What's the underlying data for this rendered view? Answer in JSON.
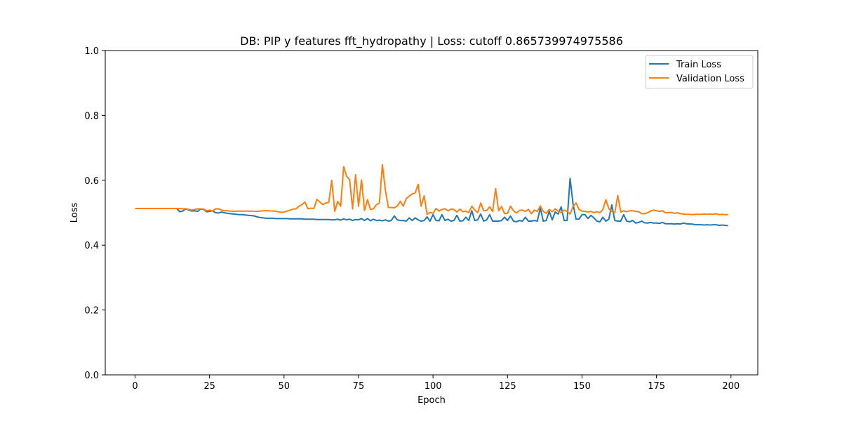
{
  "chart_data": {
    "type": "line",
    "title": "DB: PIP y features fft_hydropathy | Loss: cutoff 0.865739974975586",
    "xlabel": "Epoch",
    "ylabel": "Loss",
    "xlim": [
      -10,
      209
    ],
    "ylim": [
      0.0,
      1.0
    ],
    "x_ticks": [
      0,
      25,
      50,
      75,
      100,
      125,
      150,
      175,
      200
    ],
    "y_ticks": [
      0.0,
      0.2,
      0.4,
      0.6,
      0.8,
      1.0
    ],
    "y_tick_labels": [
      "0.0",
      "0.2",
      "0.4",
      "0.6",
      "0.8",
      "1.0"
    ],
    "grid": false,
    "legend_position": "upper-right",
    "series": [
      {
        "name": "Train Loss",
        "color": "#1f77b4",
        "values": [
          0.513,
          0.513,
          0.513,
          0.513,
          0.513,
          0.513,
          0.513,
          0.513,
          0.513,
          0.513,
          0.513,
          0.513,
          0.513,
          0.513,
          0.513,
          0.503,
          0.505,
          0.512,
          0.508,
          0.505,
          0.506,
          0.504,
          0.512,
          0.51,
          0.503,
          0.504,
          0.506,
          0.5,
          0.499,
          0.502,
          0.5,
          0.498,
          0.497,
          0.496,
          0.495,
          0.494,
          0.494,
          0.493,
          0.492,
          0.491,
          0.49,
          0.487,
          0.485,
          0.484,
          0.483,
          0.483,
          0.483,
          0.482,
          0.482,
          0.482,
          0.482,
          0.482,
          0.481,
          0.481,
          0.481,
          0.481,
          0.481,
          0.48,
          0.48,
          0.48,
          0.48,
          0.479,
          0.479,
          0.479,
          0.479,
          0.479,
          0.478,
          0.478,
          0.48,
          0.477,
          0.481,
          0.478,
          0.48,
          0.476,
          0.479,
          0.478,
          0.482,
          0.476,
          0.482,
          0.475,
          0.48,
          0.476,
          0.477,
          0.475,
          0.478,
          0.474,
          0.476,
          0.49,
          0.478,
          0.476,
          0.476,
          0.474,
          0.484,
          0.476,
          0.484,
          0.478,
          0.474,
          0.476,
          0.487,
          0.474,
          0.494,
          0.476,
          0.475,
          0.494,
          0.476,
          0.48,
          0.474,
          0.476,
          0.492,
          0.474,
          0.475,
          0.486,
          0.476,
          0.506,
          0.476,
          0.478,
          0.496,
          0.474,
          0.478,
          0.494,
          0.474,
          0.474,
          0.474,
          0.476,
          0.486,
          0.476,
          0.49,
          0.474,
          0.472,
          0.476,
          0.474,
          0.486,
          0.474,
          0.474,
          0.476,
          0.474,
          0.514,
          0.474,
          0.476,
          0.504,
          0.478,
          0.502,
          0.496,
          0.518,
          0.476,
          0.476,
          0.606,
          0.526,
          0.48,
          0.48,
          0.494,
          0.494,
          0.482,
          0.492,
          0.484,
          0.474,
          0.472,
          0.486,
          0.474,
          0.48,
          0.524,
          0.476,
          0.474,
          0.474,
          0.494,
          0.474,
          0.472,
          0.476,
          0.468,
          0.47,
          0.474,
          0.469,
          0.468,
          0.47,
          0.468,
          0.468,
          0.467,
          0.47,
          0.466,
          0.466,
          0.466,
          0.465,
          0.466,
          0.465,
          0.468,
          0.466,
          0.465,
          0.465,
          0.463,
          0.463,
          0.463,
          0.462,
          0.463,
          0.462,
          0.463,
          0.463,
          0.461,
          0.462,
          0.461,
          0.46
        ]
      },
      {
        "name": "Validation Loss",
        "color": "#ff7f0e",
        "values": [
          0.513,
          0.513,
          0.513,
          0.513,
          0.513,
          0.513,
          0.513,
          0.513,
          0.513,
          0.513,
          0.513,
          0.513,
          0.513,
          0.513,
          0.513,
          0.513,
          0.512,
          0.512,
          0.51,
          0.508,
          0.51,
          0.512,
          0.512,
          0.511,
          0.506,
          0.508,
          0.505,
          0.512,
          0.512,
          0.508,
          0.506,
          0.506,
          0.505,
          0.504,
          0.505,
          0.505,
          0.505,
          0.505,
          0.505,
          0.505,
          0.504,
          0.504,
          0.505,
          0.506,
          0.506,
          0.506,
          0.505,
          0.505,
          0.503,
          0.501,
          0.502,
          0.505,
          0.508,
          0.511,
          0.512,
          0.52,
          0.525,
          0.533,
          0.512,
          0.514,
          0.513,
          0.541,
          0.533,
          0.525,
          0.53,
          0.532,
          0.6,
          0.504,
          0.535,
          0.52,
          0.642,
          0.612,
          0.602,
          0.512,
          0.617,
          0.52,
          0.601,
          0.507,
          0.54,
          0.51,
          0.512,
          0.525,
          0.53,
          0.648,
          0.57,
          0.516,
          0.516,
          0.515,
          0.521,
          0.535,
          0.52,
          0.544,
          0.551,
          0.558,
          0.561,
          0.587,
          0.52,
          0.552,
          0.495,
          0.501,
          0.498,
          0.513,
          0.505,
          0.51,
          0.512,
          0.506,
          0.511,
          0.51,
          0.502,
          0.511,
          0.503,
          0.505,
          0.5,
          0.52,
          0.508,
          0.5,
          0.53,
          0.506,
          0.507,
          0.518,
          0.504,
          0.574,
          0.506,
          0.519,
          0.497,
          0.498,
          0.52,
          0.506,
          0.499,
          0.507,
          0.508,
          0.504,
          0.51,
          0.497,
          0.508,
          0.504,
          0.521,
          0.504,
          0.498,
          0.51,
          0.503,
          0.512,
          0.504,
          0.5,
          0.508,
          0.504,
          0.496,
          0.52,
          0.53,
          0.51,
          0.505,
          0.504,
          0.502,
          0.504,
          0.5,
          0.503,
          0.5,
          0.51,
          0.54,
          0.512,
          0.504,
          0.5,
          0.553,
          0.502,
          0.506,
          0.503,
          0.506,
          0.506,
          0.504,
          0.503,
          0.497,
          0.497,
          0.5,
          0.505,
          0.508,
          0.506,
          0.504,
          0.506,
          0.5,
          0.5,
          0.501,
          0.498,
          0.5,
          0.497,
          0.496,
          0.495,
          0.495,
          0.494,
          0.495,
          0.495,
          0.495,
          0.496,
          0.495,
          0.496,
          0.495,
          0.497,
          0.494,
          0.495,
          0.494,
          0.494
        ]
      }
    ]
  }
}
